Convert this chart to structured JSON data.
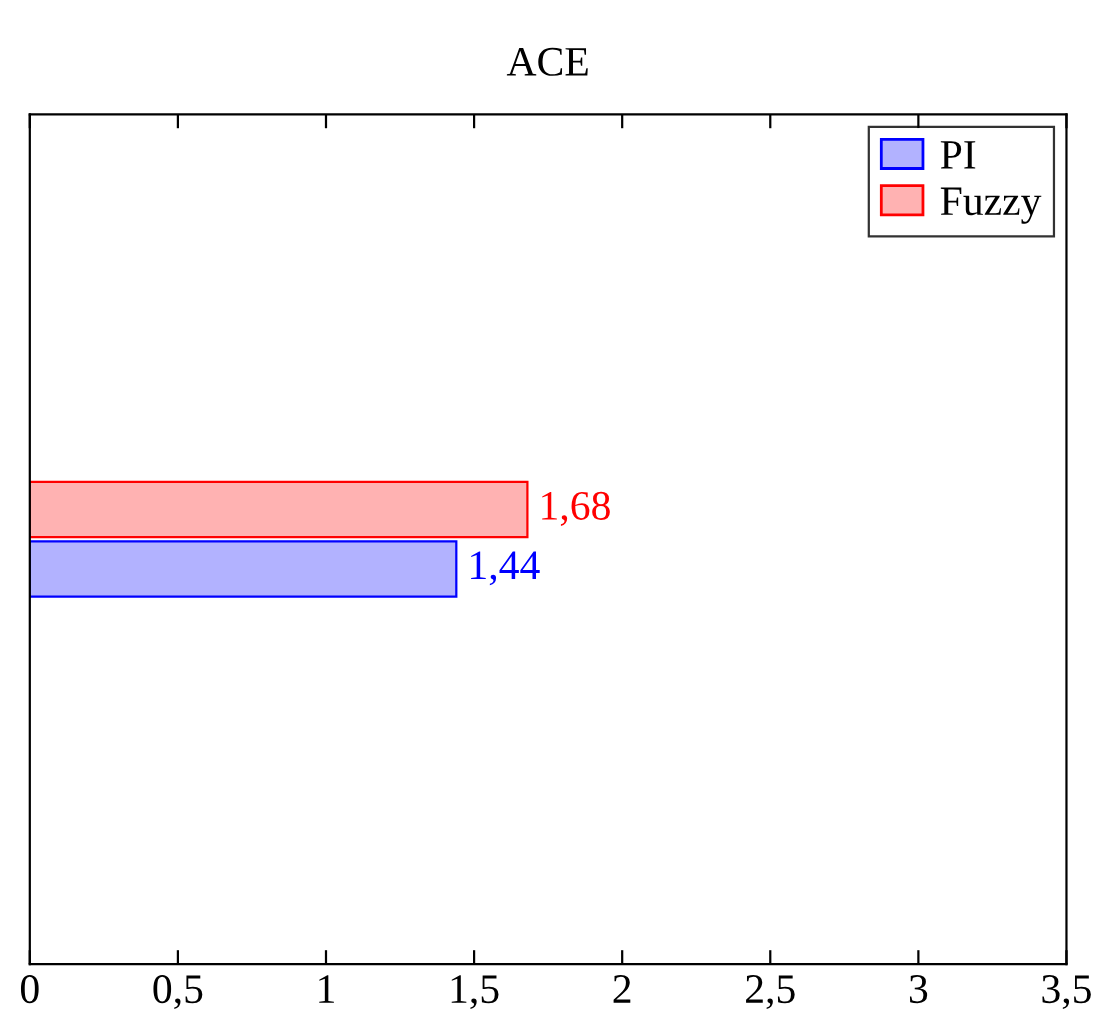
{
  "chart_data": {
    "type": "bar",
    "orientation": "horizontal",
    "title": "ACE",
    "categories": [
      null
    ],
    "series": [
      {
        "name": "PI",
        "color": "#0000ff",
        "values": [
          1.44
        ],
        "value_labels": [
          "1,44"
        ]
      },
      {
        "name": "Fuzzy",
        "color": "#ff0000",
        "values": [
          1.68
        ],
        "value_labels": [
          "1,68"
        ]
      }
    ],
    "xlim": [
      0,
      3.5
    ],
    "xticks": [
      0,
      {
        "value": 0.5,
        "label": "0,5"
      },
      1,
      {
        "value": 1.5,
        "label": "1,5"
      },
      2,
      {
        "value": 2.5,
        "label": "2,5"
      },
      3,
      {
        "value": 3.5,
        "label": "3,5"
      }
    ],
    "legend": "top right",
    "grid": false
  }
}
